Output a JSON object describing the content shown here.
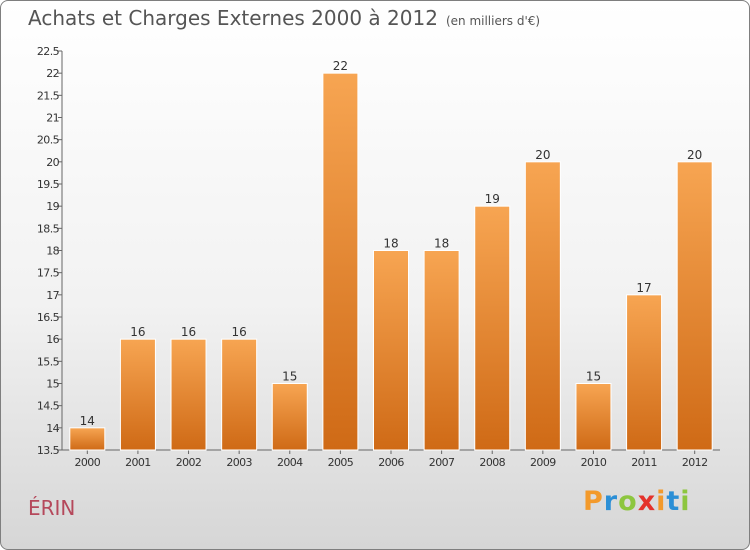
{
  "header": {
    "title": "Achats et Charges Externes 2000 à 2012",
    "subtitle": "(en milliers d'€)"
  },
  "footer": {
    "place": "ÉRIN",
    "logo": {
      "letters": [
        "P",
        "r",
        "o",
        "x",
        "i",
        "t",
        "i"
      ],
      "colors": [
        "#f39a2b",
        "#2b8fd6",
        "#8dc63f",
        "#e4322b",
        "#f39a2b",
        "#2b8fd6",
        "#8dc63f"
      ]
    }
  },
  "colors": {
    "bar_top": "#f7a552",
    "bar_bottom": "#cf6a16",
    "axis": "#666666",
    "tick_text": "#333333"
  },
  "chart_data": {
    "type": "bar",
    "categories": [
      "2000",
      "2001",
      "2002",
      "2003",
      "2004",
      "2005",
      "2006",
      "2007",
      "2008",
      "2009",
      "2010",
      "2011",
      "2012"
    ],
    "values": [
      14,
      16,
      16,
      16,
      15,
      22,
      18,
      18,
      19,
      20,
      15,
      17,
      20
    ],
    "title": "Achats et Charges Externes 2000 à 2012",
    "ylim": [
      13.5,
      22.5
    ],
    "y_ticks": [
      "13.5",
      "14",
      "14.5",
      "15",
      "15.5",
      "16",
      "16.5",
      "17",
      "17.5",
      "18",
      "18.5",
      "19",
      "19.5",
      "20",
      "20.5",
      "21",
      "21.5",
      "22",
      "22.5"
    ],
    "grid": false,
    "legend": "none"
  }
}
